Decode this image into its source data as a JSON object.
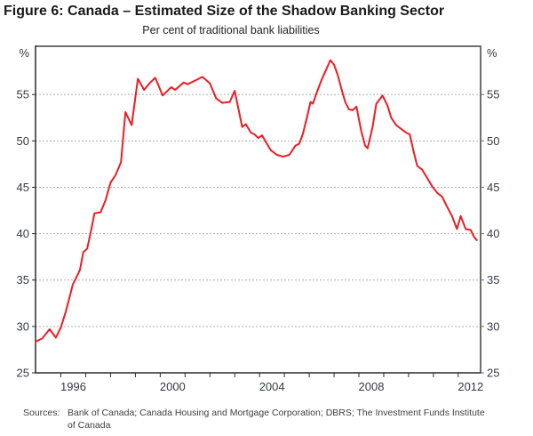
{
  "figure": {
    "title": "Figure 6: Canada – Estimated Size of the Shadow Banking Sector",
    "subtitle": "Per cent of traditional bank liabilities",
    "sources_label": "Sources:",
    "sources_line1": "Bank of Canada; Canada Housing and Mortgage Corporation; DBRS; The Investment Funds Institute",
    "sources_line2": "of Canada"
  },
  "chart_data": {
    "type": "line",
    "title": "Figure 6: Canada – Estimated Size of the Shadow Banking Sector",
    "subtitle": "Per cent of traditional bank liabilities",
    "legend": "none",
    "grid": "horizontal-dotted",
    "colors": {
      "line": "#ED1C24",
      "grid": "#b0b0b0",
      "frame_gray": "#6e6e6e",
      "axis_black": "#2a2a2a",
      "label_text": "#333a46"
    },
    "x_axis": {
      "range": [
        1994.98,
        2012.9
      ],
      "tick_years": [
        1995,
        1996,
        1997,
        1998,
        1999,
        2000,
        2001,
        2002,
        2003,
        2004,
        2005,
        2006,
        2007,
        2008,
        2009,
        2010,
        2011,
        2012
      ],
      "label_years": [
        "1996",
        "2000",
        "2004",
        "2008",
        "2012"
      ]
    },
    "y_axis": {
      "range": [
        25,
        60.2
      ],
      "ticks": [
        "25",
        "30",
        "35",
        "40",
        "45",
        "50",
        "55"
      ],
      "tick_values": [
        25,
        30,
        35,
        40,
        45,
        50,
        55
      ],
      "grid_values": [
        30,
        35,
        40,
        45,
        50,
        55
      ],
      "unit_label": "%"
    },
    "series": [
      {
        "name": "Shadow banking sector, per cent of traditional bank liabilities",
        "color": "#ED1C24",
        "points": [
          [
            1995.0,
            28.4
          ],
          [
            1995.25,
            28.7
          ],
          [
            1995.55,
            29.7
          ],
          [
            1995.8,
            28.8
          ],
          [
            1996.0,
            29.9
          ],
          [
            1996.2,
            31.6
          ],
          [
            1996.48,
            34.5
          ],
          [
            1996.77,
            36.1
          ],
          [
            1996.9,
            38.0
          ],
          [
            1997.06,
            38.4
          ],
          [
            1997.25,
            40.8
          ],
          [
            1997.35,
            42.2
          ],
          [
            1997.6,
            42.3
          ],
          [
            1997.8,
            43.6
          ],
          [
            1998.0,
            45.5
          ],
          [
            1998.2,
            46.3
          ],
          [
            1998.42,
            47.7
          ],
          [
            1998.6,
            53.1
          ],
          [
            1998.85,
            51.7
          ],
          [
            1999.1,
            56.7
          ],
          [
            1999.35,
            55.5
          ],
          [
            1999.6,
            56.3
          ],
          [
            1999.8,
            56.8
          ],
          [
            2000.1,
            54.9
          ],
          [
            2000.45,
            55.8
          ],
          [
            2000.6,
            55.5
          ],
          [
            2000.95,
            56.3
          ],
          [
            2001.1,
            56.1
          ],
          [
            2001.4,
            56.5
          ],
          [
            2001.7,
            56.9
          ],
          [
            2002.0,
            56.2
          ],
          [
            2002.25,
            54.6
          ],
          [
            2002.5,
            54.1
          ],
          [
            2002.8,
            54.2
          ],
          [
            2003.0,
            55.4
          ],
          [
            2003.3,
            51.5
          ],
          [
            2003.45,
            51.8
          ],
          [
            2003.65,
            50.9
          ],
          [
            2003.8,
            50.7
          ],
          [
            2003.95,
            50.3
          ],
          [
            2004.1,
            50.6
          ],
          [
            2004.25,
            49.9
          ],
          [
            2004.45,
            49.0
          ],
          [
            2004.7,
            48.5
          ],
          [
            2004.95,
            48.3
          ],
          [
            2005.2,
            48.5
          ],
          [
            2005.45,
            49.5
          ],
          [
            2005.6,
            49.7
          ],
          [
            2005.75,
            50.8
          ],
          [
            2005.95,
            53.0
          ],
          [
            2006.05,
            54.2
          ],
          [
            2006.15,
            54.0
          ],
          [
            2006.3,
            55.2
          ],
          [
            2006.5,
            56.6
          ],
          [
            2006.65,
            57.5
          ],
          [
            2006.85,
            58.7
          ],
          [
            2007.0,
            58.2
          ],
          [
            2007.15,
            57.1
          ],
          [
            2007.3,
            55.6
          ],
          [
            2007.45,
            54.2
          ],
          [
            2007.6,
            53.4
          ],
          [
            2007.75,
            53.3
          ],
          [
            2007.9,
            53.7
          ],
          [
            2008.1,
            51.0
          ],
          [
            2008.25,
            49.5
          ],
          [
            2008.35,
            49.2
          ],
          [
            2008.55,
            51.5
          ],
          [
            2008.7,
            54.0
          ],
          [
            2008.95,
            54.9
          ],
          [
            2009.15,
            53.8
          ],
          [
            2009.3,
            52.5
          ],
          [
            2009.5,
            51.7
          ],
          [
            2009.7,
            51.3
          ],
          [
            2009.9,
            50.9
          ],
          [
            2010.05,
            50.7
          ],
          [
            2010.2,
            48.9
          ],
          [
            2010.35,
            47.3
          ],
          [
            2010.55,
            46.9
          ],
          [
            2010.75,
            46.0
          ],
          [
            2010.95,
            45.1
          ],
          [
            2011.15,
            44.4
          ],
          [
            2011.35,
            44.0
          ],
          [
            2011.55,
            42.9
          ],
          [
            2011.75,
            41.9
          ],
          [
            2011.95,
            40.5
          ],
          [
            2012.1,
            41.9
          ],
          [
            2012.3,
            40.5
          ],
          [
            2012.5,
            40.4
          ],
          [
            2012.65,
            39.6
          ],
          [
            2012.75,
            39.3
          ]
        ]
      }
    ]
  }
}
